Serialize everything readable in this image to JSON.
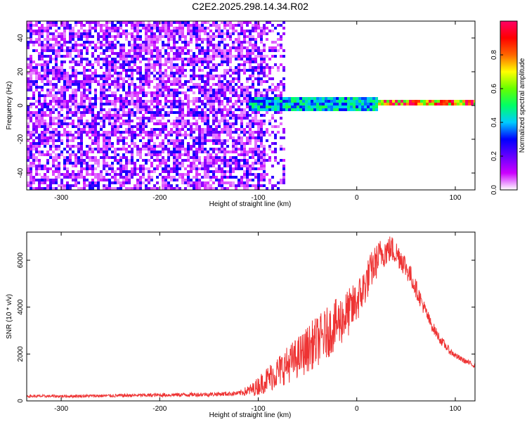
{
  "title": "C2E2.2025.298.14.34.R02",
  "chart_data": [
    {
      "type": "heatmap",
      "name": "spectrogram",
      "xlabel": "Height of straight line (km)",
      "ylabel": "Frequency (Hz)",
      "xlim": [
        -335,
        120
      ],
      "ylim": [
        -50,
        50
      ],
      "xticks": [
        -300,
        -200,
        -100,
        0,
        100
      ],
      "yticks": [
        -40,
        -20,
        0,
        20,
        40
      ],
      "grid": false,
      "colorbar": {
        "label": "Normalized spectral amplitude",
        "range": [
          0,
          1
        ],
        "ticks": [
          0.0,
          0.2,
          0.4,
          0.6,
          0.8
        ],
        "colors": [
          "#ffffff",
          "#cc00ff",
          "#6600ff",
          "#0000ff",
          "#00ccff",
          "#00ff66",
          "#66ff00",
          "#ffff00",
          "#ff6600",
          "#ff0000",
          "#ff0066"
        ]
      },
      "description_regions": [
        {
          "x_range": [
            -335,
            -95
          ],
          "freq_range": [
            -50,
            50
          ],
          "amplitude": 0.08
        },
        {
          "x_range": [
            -95,
            -75
          ],
          "freq_range": [
            -50,
            50
          ],
          "amplitude": 0.04
        },
        {
          "x_range": [
            -110,
            20
          ],
          "freq_range": [
            -3,
            6
          ],
          "amplitude": 0.45
        },
        {
          "x_range": [
            20,
            120
          ],
          "freq_range": [
            1,
            4
          ],
          "amplitude": 0.9
        }
      ]
    },
    {
      "type": "line",
      "name": "snr",
      "xlabel": "Height of straight line (km)",
      "ylabel": "SNR (10 * v/v)",
      "xlim": [
        -335,
        120
      ],
      "ylim": [
        0,
        7200
      ],
      "xticks": [
        -300,
        -200,
        -100,
        0,
        100
      ],
      "yticks": [
        0,
        2000,
        4000,
        6000
      ],
      "grid": false,
      "color": "#ee3333",
      "series": [
        {
          "name": "SNR",
          "x": [
            -335,
            -300,
            -250,
            -200,
            -150,
            -120,
            -105,
            -95,
            -85,
            -75,
            -65,
            -55,
            -45,
            -35,
            -25,
            -15,
            -5,
            5,
            15,
            25,
            35,
            45,
            55,
            65,
            75,
            85,
            95,
            105,
            120
          ],
          "values": [
            200,
            200,
            220,
            250,
            280,
            320,
            500,
            800,
            1100,
            1400,
            1700,
            2000,
            2400,
            2700,
            3100,
            3500,
            3900,
            4600,
            5600,
            6300,
            6500,
            6100,
            5300,
            4300,
            3300,
            2600,
            2100,
            1800,
            1500
          ],
          "noise_amplitude": [
            60,
            60,
            70,
            80,
            90,
            100,
            300,
            500,
            650,
            750,
            850,
            950,
            1050,
            1100,
            1100,
            1100,
            1000,
            900,
            800,
            700,
            600,
            550,
            450,
            350,
            250,
            200,
            150,
            120,
            100
          ]
        }
      ]
    }
  ]
}
